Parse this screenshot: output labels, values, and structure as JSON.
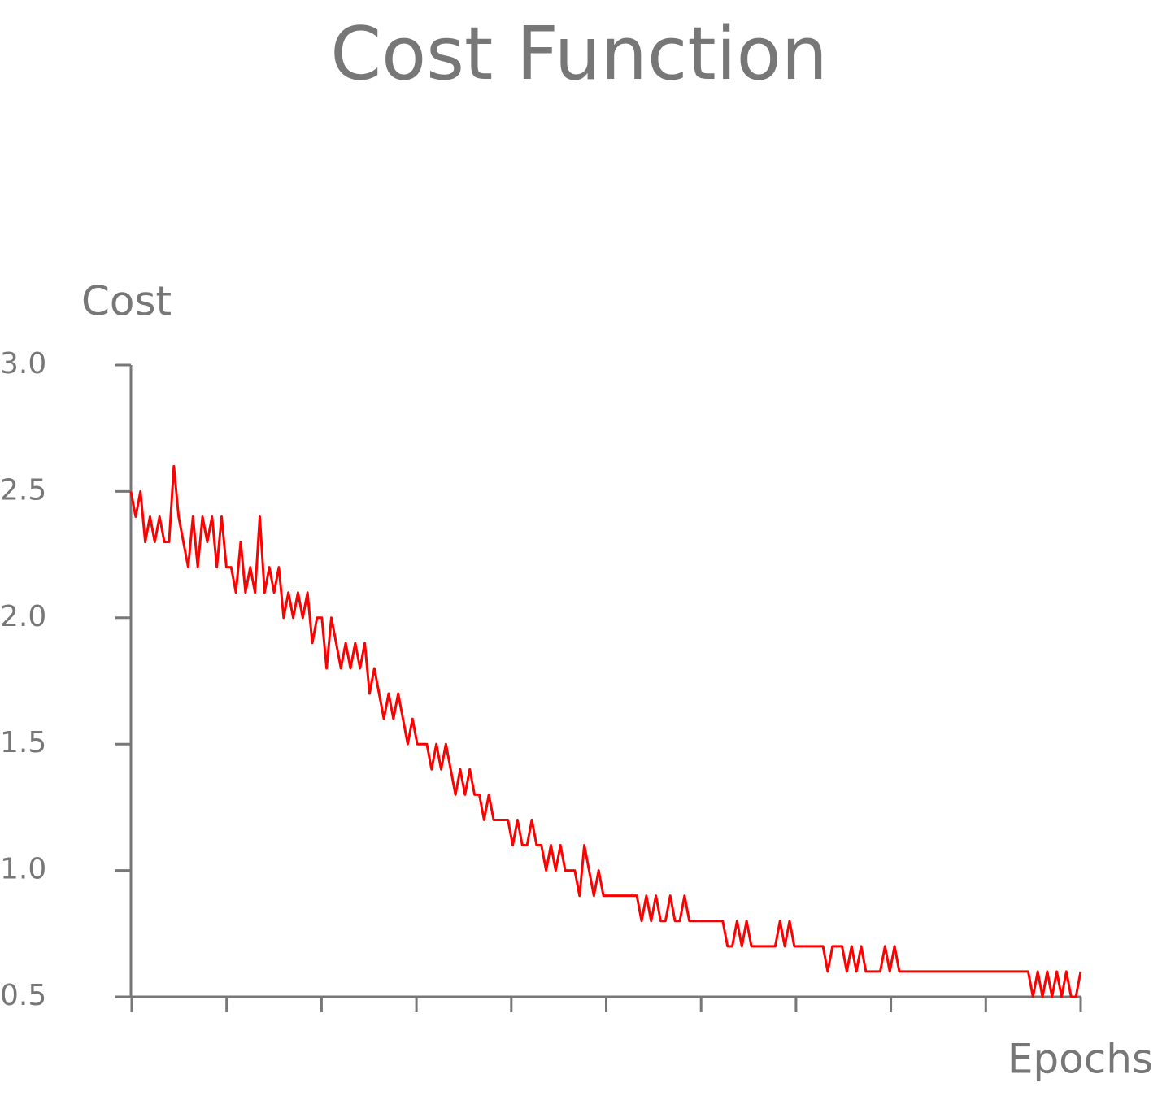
{
  "chart_data": {
    "type": "line",
    "title": "Cost Function",
    "ylabel": "Cost",
    "xlabel": "Epochs",
    "color": "#ff0000",
    "ylim": [
      0.5,
      3.0
    ],
    "yticks": [
      {
        "value": 0.5,
        "label": "0.5"
      },
      {
        "value": 1.0,
        "label": "1.0"
      },
      {
        "value": 1.5,
        "label": "1.5"
      },
      {
        "value": 2.0,
        "label": "2.0"
      },
      {
        "value": 2.5,
        "label": "2.5"
      },
      {
        "value": 3.0,
        "label": "3.0"
      }
    ],
    "values": [
      2.5,
      2.4,
      2.5,
      2.3,
      2.4,
      2.3,
      2.4,
      2.3,
      2.3,
      2.6,
      2.4,
      2.3,
      2.2,
      2.4,
      2.2,
      2.4,
      2.3,
      2.4,
      2.2,
      2.4,
      2.2,
      2.2,
      2.1,
      2.3,
      2.1,
      2.2,
      2.1,
      2.4,
      2.1,
      2.2,
      2.1,
      2.2,
      2.0,
      2.1,
      2.0,
      2.1,
      2.0,
      2.1,
      1.9,
      2.0,
      2.0,
      1.8,
      2.0,
      1.9,
      1.8,
      1.9,
      1.8,
      1.9,
      1.8,
      1.9,
      1.7,
      1.8,
      1.7,
      1.6,
      1.7,
      1.6,
      1.7,
      1.6,
      1.5,
      1.6,
      1.5,
      1.5,
      1.5,
      1.4,
      1.5,
      1.4,
      1.5,
      1.4,
      1.3,
      1.4,
      1.3,
      1.4,
      1.3,
      1.3,
      1.2,
      1.3,
      1.2,
      1.2,
      1.2,
      1.2,
      1.1,
      1.2,
      1.1,
      1.1,
      1.2,
      1.1,
      1.1,
      1.0,
      1.1,
      1.0,
      1.1,
      1.0,
      1.0,
      1.0,
      0.9,
      1.1,
      1.0,
      0.9,
      1.0,
      0.9,
      0.9,
      0.9,
      0.9,
      0.9,
      0.9,
      0.9,
      0.9,
      0.8,
      0.9,
      0.8,
      0.9,
      0.8,
      0.8,
      0.9,
      0.8,
      0.8,
      0.9,
      0.8,
      0.8,
      0.8,
      0.8,
      0.8,
      0.8,
      0.8,
      0.8,
      0.7,
      0.7,
      0.8,
      0.7,
      0.8,
      0.7,
      0.7,
      0.7,
      0.7,
      0.7,
      0.7,
      0.8,
      0.7,
      0.8,
      0.7,
      0.7,
      0.7,
      0.7,
      0.7,
      0.7,
      0.7,
      0.6,
      0.7,
      0.7,
      0.7,
      0.6,
      0.7,
      0.6,
      0.7,
      0.6,
      0.6,
      0.6,
      0.6,
      0.7,
      0.6,
      0.7,
      0.6,
      0.6,
      0.6,
      0.6,
      0.6,
      0.6,
      0.6,
      0.6,
      0.6,
      0.6,
      0.6,
      0.6,
      0.6,
      0.6,
      0.6,
      0.6,
      0.6,
      0.6,
      0.6,
      0.6,
      0.6,
      0.6,
      0.6,
      0.6,
      0.6,
      0.6,
      0.6,
      0.6,
      0.5,
      0.6,
      0.5,
      0.6,
      0.5,
      0.6,
      0.5,
      0.6,
      0.5,
      0.5,
      0.6
    ]
  }
}
